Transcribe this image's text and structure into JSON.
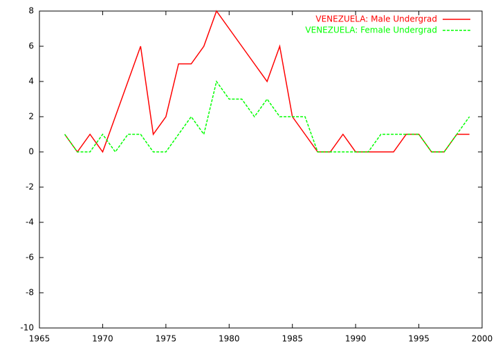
{
  "chart_data": {
    "type": "line",
    "x": [
      1967,
      1968,
      1969,
      1970,
      1971,
      1972,
      1973,
      1974,
      1975,
      1976,
      1977,
      1978,
      1979,
      1980,
      1981,
      1982,
      1983,
      1984,
      1985,
      1986,
      1987,
      1988,
      1989,
      1990,
      1991,
      1992,
      1993,
      1994,
      1995,
      1996,
      1997,
      1998,
      1999
    ],
    "series": [
      {
        "name": "VENEZUELA: Male Undergrad",
        "color": "#ff0000",
        "dashed": false,
        "values": [
          1,
          0,
          1,
          0,
          2,
          4,
          6,
          1,
          2,
          5,
          5,
          6,
          8,
          7,
          6,
          5,
          4,
          6,
          2,
          1,
          0,
          0,
          1,
          0,
          0,
          0,
          0,
          1,
          1,
          0,
          0,
          1,
          1
        ]
      },
      {
        "name": "VENEZUELA: Female Undergrad",
        "color": "#00ff00",
        "dashed": true,
        "values": [
          1,
          0,
          0,
          1,
          0,
          1,
          1,
          0,
          0,
          1,
          2,
          1,
          4,
          3,
          3,
          2,
          3,
          2,
          2,
          2,
          0,
          0,
          0,
          0,
          0,
          1,
          1,
          1,
          1,
          0,
          0,
          1,
          2
        ]
      }
    ],
    "xlim": [
      1965,
      2000
    ],
    "xticks": [
      1965,
      1970,
      1975,
      1980,
      1985,
      1990,
      1995,
      2000
    ],
    "ylim": [
      -10,
      8
    ],
    "yticks": [
      -10,
      -8,
      -6,
      -4,
      -2,
      0,
      2,
      4,
      6,
      8
    ],
    "legend": "top-right"
  }
}
